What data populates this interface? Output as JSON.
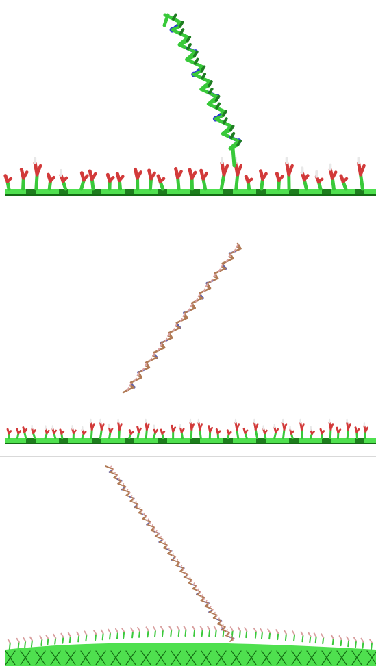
{
  "figure": {
    "panels": [
      {
        "id": "panel-1",
        "render_style": "licorice-sticks",
        "polymer_monomers": 6
      },
      {
        "id": "panel-2",
        "render_style": "thin-sticks",
        "polymer_monomers": 10
      },
      {
        "id": "panel-3",
        "render_style": "thin-sticks",
        "polymer_monomers": 20
      }
    ],
    "colors": {
      "carbon": "#39c93a",
      "carbon_dark": "#1f7d22",
      "oxygen": "#d23a3a",
      "hydrogen": "#e8e8e8",
      "nitrogen": "#2d3bd4",
      "thin_carbon": "#b07a55",
      "thin_oxygen": "#d9a0a0",
      "thin_nitrogen": "#5a5fb0",
      "surface_light": "#4fe04f",
      "surface_dark": "#146b14",
      "divider": "#d9d9d9"
    }
  }
}
